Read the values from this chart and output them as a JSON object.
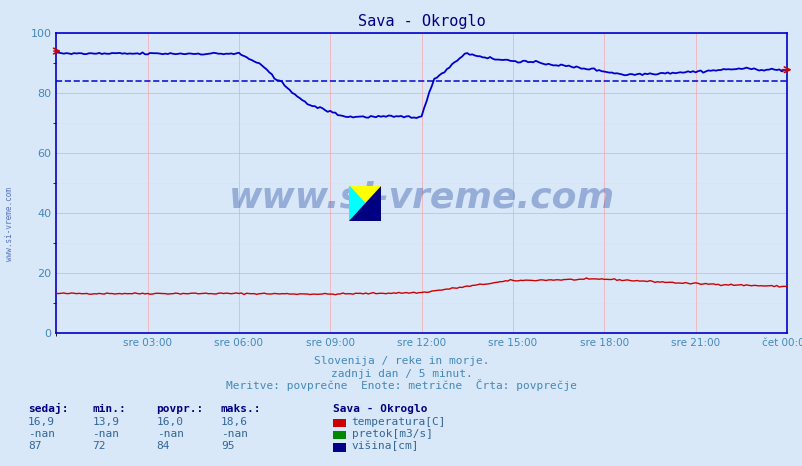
{
  "title": "Sava - Okroglo",
  "background_color": "#d8e8f8",
  "plot_bg_color": "#d8e8f8",
  "grid_color_major": "#ff9999",
  "grid_color_minor": "#ffcccc",
  "tick_color": "#4488bb",
  "title_color": "#000080",
  "xlim": [
    0,
    288
  ],
  "ylim": [
    0,
    100
  ],
  "yticks": [
    0,
    20,
    40,
    60,
    80,
    100
  ],
  "xtick_labels": [
    "sre 03:00",
    "sre 06:00",
    "sre 09:00",
    "sre 12:00",
    "sre 15:00",
    "sre 18:00",
    "sre 21:00",
    "čet 00:00"
  ],
  "xtick_positions": [
    36,
    72,
    108,
    144,
    180,
    216,
    252,
    288
  ],
  "avg_line_y": 84,
  "avg_line_color": "#0000cc",
  "subtitle1": "Slovenija / reke in morje.",
  "subtitle2": "zadnji dan / 5 minut.",
  "subtitle3": "Meritve: povprečne  Enote: metrične  Črta: povprečje",
  "watermark": "www.si-vreme.com",
  "watermark_color": "#3355aa",
  "legend_title": "Sava - Okroglo",
  "legend_items": [
    {
      "label": "temperatura[C]",
      "color": "#cc0000"
    },
    {
      "label": "pretok[m3/s]",
      "color": "#008800"
    },
    {
      "label": "višina[cm]",
      "color": "#000088"
    }
  ],
  "table_headers": [
    "sedaj:",
    "min.:",
    "povpr.:",
    "maks.:"
  ],
  "table_rows": [
    [
      "16,9",
      "13,9",
      "16,0",
      "18,6"
    ],
    [
      "-nan",
      "-nan",
      "-nan",
      "-nan"
    ],
    [
      "87",
      "72",
      "84",
      "95"
    ]
  ],
  "temp_color": "#cc0000",
  "pretok_color": "#008800",
  "visina_color": "#0000cc",
  "border_color": "#0000cc",
  "arrow_color": "#cc0000",
  "subtitle_color": "#4488bb",
  "header_color": "#000080",
  "val_color": "#336699"
}
